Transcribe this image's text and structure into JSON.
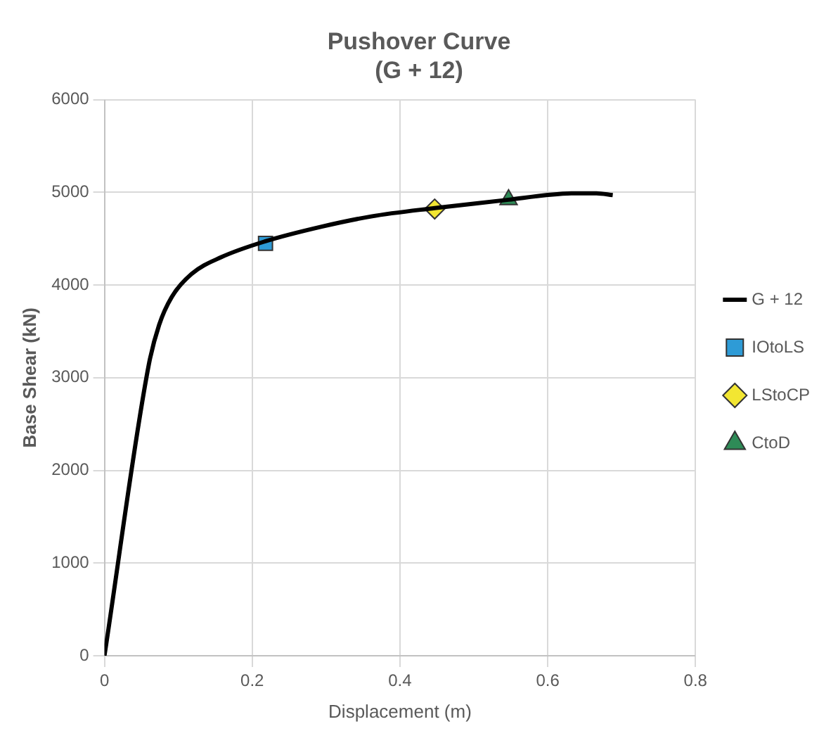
{
  "chart_data": {
    "type": "line",
    "title": [
      "Pushover Curve",
      "(G + 12)"
    ],
    "xlabel": "Displacement (m)",
    "ylabel": "Base Shear (kN)",
    "xlim": [
      0,
      0.8
    ],
    "xticks": [
      0,
      0.2,
      0.4,
      0.6,
      0.8
    ],
    "ylim": [
      0,
      6000
    ],
    "yticks": [
      0,
      1000,
      2000,
      3000,
      4000,
      5000,
      6000
    ],
    "grid": true,
    "legend": "right",
    "series": [
      {
        "name": "G + 12",
        "color": "#000000",
        "marker": "none",
        "x": [
          0,
          0.06,
          0.074,
          0.091,
          0.118,
          0.158,
          0.217,
          0.294,
          0.361,
          0.447,
          0.547,
          0.598,
          0.632,
          0.666,
          0.688
        ],
        "values": [
          0,
          3140,
          3570,
          3870,
          4120,
          4300,
          4470,
          4630,
          4740,
          4830,
          4920,
          4970,
          4990,
          4990,
          4970
        ]
      },
      {
        "name": "IOtoLS",
        "type": "scatter",
        "color": "#2e9bd6",
        "marker": "square",
        "x": [
          0.218
        ],
        "values": [
          4450
        ]
      },
      {
        "name": "LStoCP",
        "type": "scatter",
        "color": "#f2e632",
        "marker": "diamond",
        "x": [
          0.447
        ],
        "values": [
          4820
        ]
      },
      {
        "name": "CtoD",
        "type": "scatter",
        "color": "#2e8b57",
        "marker": "triangle",
        "x": [
          0.547
        ],
        "values": [
          4920
        ]
      }
    ]
  }
}
